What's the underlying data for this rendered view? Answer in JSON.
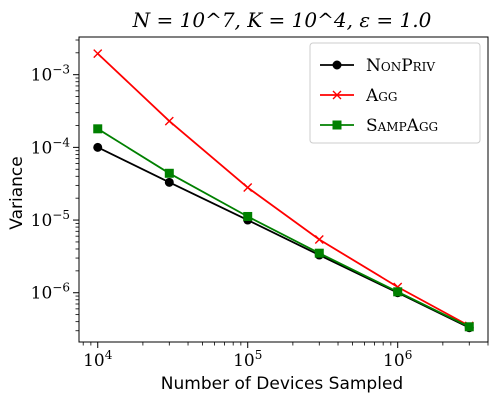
{
  "chart_data": {
    "type": "line",
    "title": "N = 10^7, K = 10^4, ε = 1.0",
    "xlabel": "Number of Devices Sampled",
    "ylabel": "Variance",
    "xscale": "log",
    "yscale": "log",
    "xlim": [
      7500,
      4000000
    ],
    "ylim": [
      2.1e-07,
      0.0033
    ],
    "x": [
      10000,
      30000,
      100000,
      300000,
      1000000,
      3000000
    ],
    "xticks": [
      {
        "value": 10000,
        "mant": "10",
        "exp": "4"
      },
      {
        "value": 100000,
        "mant": "10",
        "exp": "5"
      },
      {
        "value": 1000000,
        "mant": "10",
        "exp": "6"
      }
    ],
    "yticks": [
      {
        "value": 1e-06,
        "mant": "10",
        "exp": "−6"
      },
      {
        "value": 1e-05,
        "mant": "10",
        "exp": "−5"
      },
      {
        "value": 0.0001,
        "mant": "10",
        "exp": "−4"
      },
      {
        "value": 0.001,
        "mant": "10",
        "exp": "−3"
      }
    ],
    "legend_position": "top-right",
    "grid": false,
    "series": [
      {
        "name": "NonPriv",
        "color": "#000000",
        "marker": "circle",
        "values": [
          0.0001,
          3.3e-05,
          1e-05,
          3.3e-06,
          1e-06,
          3.3e-07
        ]
      },
      {
        "name": "Agg",
        "color": "#ff0000",
        "marker": "x",
        "values": [
          0.00195,
          0.00023,
          2.8e-05,
          5.4e-06,
          1.2e-06,
          3.5e-07
        ]
      },
      {
        "name": "SampAgg",
        "color": "#008000",
        "marker": "square",
        "values": [
          0.00018,
          4.4e-05,
          1.12e-05,
          3.5e-06,
          1.03e-06,
          3.4e-07
        ]
      }
    ]
  }
}
